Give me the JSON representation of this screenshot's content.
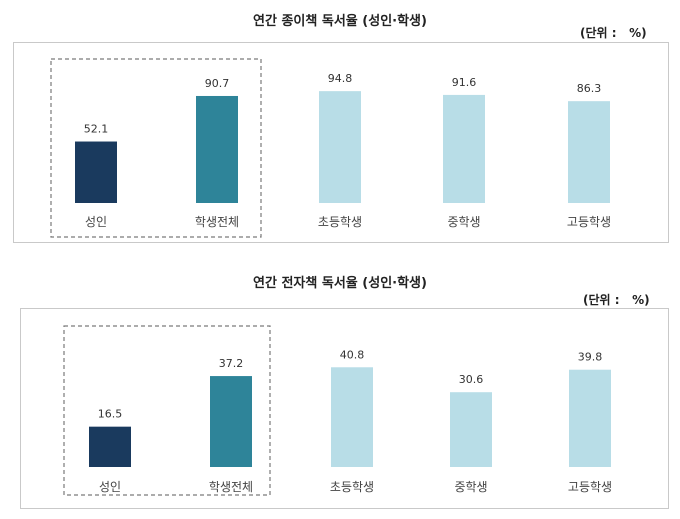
{
  "chart_data": [
    {
      "type": "bar",
      "title": "연간 종이책 독서율 (성인·학생)",
      "unit": "(단위 :   %)",
      "categories": [
        "성인",
        "학생전체",
        "초등학생",
        "중학생",
        "고등학생"
      ],
      "values": [
        52.1,
        90.7,
        94.8,
        91.6,
        86.3
      ],
      "value_labels": [
        "52.1",
        "90.7",
        "94.8",
        "91.6",
        "86.3"
      ],
      "ylim": [
        0,
        100
      ],
      "grid": false,
      "legend": "none",
      "bar_colors": [
        "#1a3a5e",
        "#2e8499",
        "#b8dde7",
        "#b8dde7",
        "#b8dde7"
      ],
      "highlight_box": "dashed box around 성인 and 학생전체"
    },
    {
      "type": "bar",
      "title": "연간 전자책 독서율 (성인·학생)",
      "unit": "(단위 :   %)",
      "categories": [
        "성인",
        "학생전체",
        "초등학생",
        "중학생",
        "고등학생"
      ],
      "values": [
        16.5,
        37.2,
        40.8,
        30.6,
        39.8
      ],
      "value_labels": [
        "16.5",
        "37.2",
        "40.8",
        "30.6",
        "39.8"
      ],
      "ylim": [
        0,
        45
      ],
      "grid": false,
      "legend": "none",
      "bar_colors": [
        "#1a3a5e",
        "#2e8499",
        "#b8dde7",
        "#b8dde7",
        "#b8dde7"
      ],
      "highlight_box": "dashed box around 성인 and 학생전체"
    }
  ]
}
